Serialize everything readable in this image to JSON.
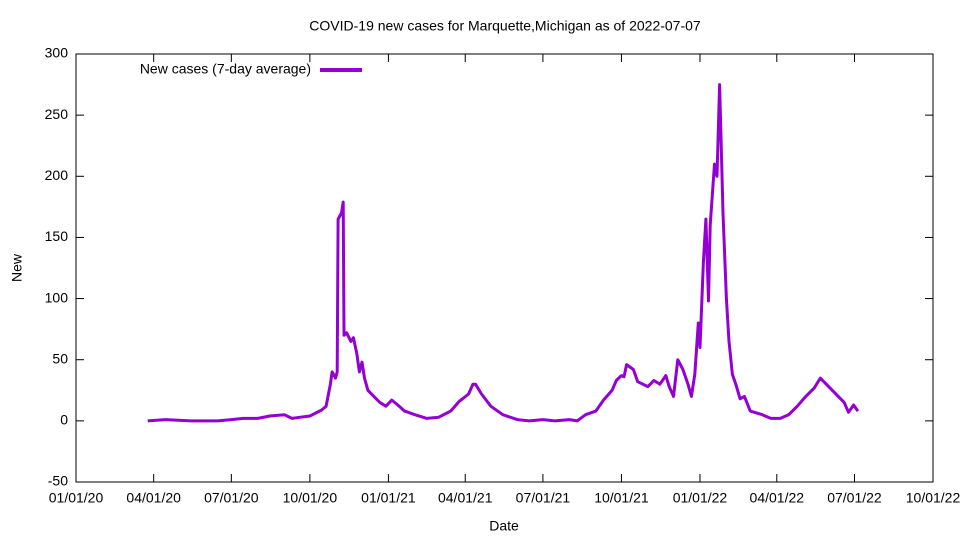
{
  "chart_data": {
    "type": "line",
    "title": "COVID-19 new cases for Marquette,Michigan as of 2022-07-07",
    "x_label": "Date",
    "y_label": "New",
    "legend": "top-left",
    "xlim": [
      "2020-01-01",
      "2022-10-01"
    ],
    "xticks": [
      {
        "value": "2020-01-01",
        "label": "01/01/20"
      },
      {
        "value": "2020-04-01",
        "label": "04/01/20"
      },
      {
        "value": "2020-07-01",
        "label": "07/01/20"
      },
      {
        "value": "2020-10-01",
        "label": "10/01/20"
      },
      {
        "value": "2021-01-01",
        "label": "01/01/21"
      },
      {
        "value": "2021-04-01",
        "label": "04/01/21"
      },
      {
        "value": "2021-07-01",
        "label": "07/01/21"
      },
      {
        "value": "2021-10-01",
        "label": "10/01/21"
      },
      {
        "value": "2022-01-01",
        "label": "01/01/22"
      },
      {
        "value": "2022-04-01",
        "label": "04/01/22"
      },
      {
        "value": "2022-07-01",
        "label": "07/01/22"
      },
      {
        "value": "2022-10-01",
        "label": "10/01/22"
      }
    ],
    "ylim": [
      -50,
      300
    ],
    "yticks": [
      -50,
      0,
      50,
      100,
      150,
      200,
      250,
      300
    ],
    "x": [
      "2020-03-25",
      "2020-04-15",
      "2020-05-15",
      "2020-06-15",
      "2020-07-01",
      "2020-07-15",
      "2020-08-01",
      "2020-08-15",
      "2020-09-01",
      "2020-09-10",
      "2020-09-20",
      "2020-10-01",
      "2020-10-15",
      "2020-10-20",
      "2020-10-25",
      "2020-10-27",
      "2020-10-31",
      "2020-11-02",
      "2020-11-03",
      "2020-11-07",
      "2020-11-09",
      "2020-11-10",
      "2020-11-13",
      "2020-11-18",
      "2020-11-21",
      "2020-11-25",
      "2020-11-28",
      "2020-12-01",
      "2020-12-04",
      "2020-12-08",
      "2020-12-15",
      "2020-12-22",
      "2020-12-29",
      "2021-01-05",
      "2021-01-12",
      "2021-01-20",
      "2021-02-01",
      "2021-02-15",
      "2021-03-01",
      "2021-03-15",
      "2021-03-25",
      "2021-04-05",
      "2021-04-10",
      "2021-04-13",
      "2021-04-20",
      "2021-05-01",
      "2021-05-15",
      "2021-06-01",
      "2021-06-15",
      "2021-07-01",
      "2021-07-15",
      "2021-08-01",
      "2021-08-10",
      "2021-08-20",
      "2021-09-01",
      "2021-09-10",
      "2021-09-20",
      "2021-09-25",
      "2021-10-01",
      "2021-10-04",
      "2021-10-07",
      "2021-10-15",
      "2021-10-20",
      "2021-11-01",
      "2021-11-08",
      "2021-11-15",
      "2021-11-22",
      "2021-11-26",
      "2021-12-01",
      "2021-12-06",
      "2021-12-12",
      "2021-12-18",
      "2021-12-22",
      "2021-12-26",
      "2021-12-30",
      "2022-01-01",
      "2022-01-05",
      "2022-01-08",
      "2022-01-11",
      "2022-01-13",
      "2022-01-18",
      "2022-01-21",
      "2022-01-24",
      "2022-01-28",
      "2022-02-01",
      "2022-02-04",
      "2022-02-08",
      "2022-02-12",
      "2022-02-17",
      "2022-02-22",
      "2022-03-01",
      "2022-03-15",
      "2022-03-25",
      "2022-04-05",
      "2022-04-15",
      "2022-04-25",
      "2022-05-05",
      "2022-05-15",
      "2022-05-22",
      "2022-05-29",
      "2022-06-05",
      "2022-06-12",
      "2022-06-19",
      "2022-06-24",
      "2022-06-30",
      "2022-07-05"
    ],
    "series": [
      {
        "name": "New cases (7-day average)",
        "color": "#9400d3",
        "values": [
          0,
          1,
          0,
          0,
          1,
          2,
          2,
          4,
          5,
          2,
          3,
          4,
          9,
          12,
          30,
          40,
          35,
          40,
          165,
          170,
          179,
          70,
          72,
          65,
          68,
          55,
          40,
          48,
          35,
          25,
          20,
          15,
          12,
          17,
          13,
          8,
          5,
          2,
          3,
          8,
          16,
          22,
          30,
          30,
          22,
          12,
          5,
          1,
          0,
          1,
          0,
          1,
          0,
          5,
          8,
          17,
          25,
          33,
          37,
          36,
          46,
          42,
          32,
          28,
          33,
          30,
          37,
          28,
          20,
          50,
          42,
          30,
          20,
          38,
          80,
          60,
          130,
          165,
          98,
          160,
          210,
          200,
          275,
          170,
          100,
          65,
          38,
          30,
          18,
          20,
          8,
          5,
          2,
          2,
          5,
          12,
          20,
          27,
          35,
          30,
          25,
          20,
          15,
          7,
          13,
          8
        ]
      }
    ]
  }
}
